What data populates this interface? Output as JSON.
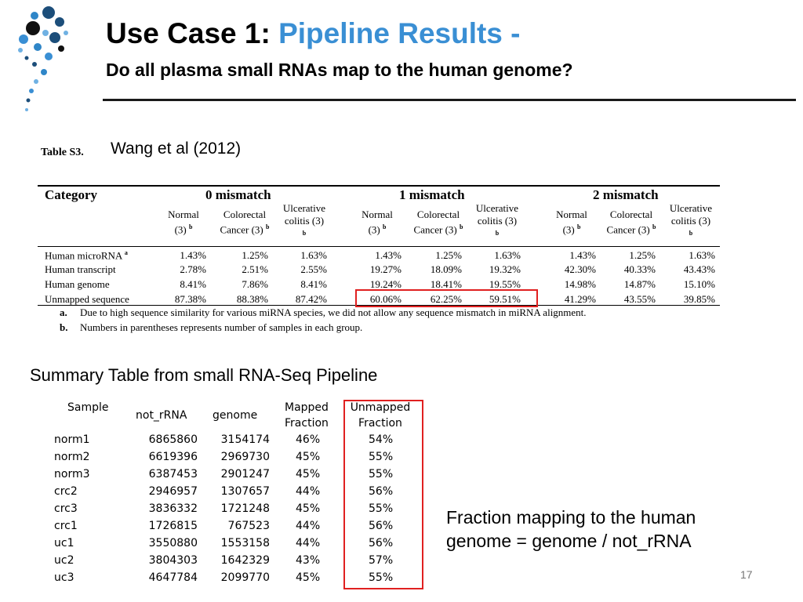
{
  "header": {
    "title_prefix": "Use Case 1: ",
    "title_accent": "Pipeline Results -",
    "subtitle": "Do all plasma small RNAs map to the human genome?"
  },
  "citation": "Wang et al (2012)",
  "table_s3": {
    "label": "Table S3.",
    "category_header": "Category",
    "groups": [
      "0 mismatch",
      "1 mismatch",
      "2 mismatch"
    ],
    "subheaders": [
      {
        "line1": "Normal",
        "line2": "(3)",
        "sup": "b"
      },
      {
        "line1": "Colorectal",
        "line2": "Cancer (3)",
        "sup": "b"
      },
      {
        "line1": "Ulcerative",
        "line2": "colitis (3)",
        "sup": "b"
      }
    ],
    "rows": [
      {
        "label": "Human microRNA",
        "sup": "a",
        "values": [
          "1.43%",
          "1.25%",
          "1.63%",
          "1.43%",
          "1.25%",
          "1.63%",
          "1.43%",
          "1.25%",
          "1.63%"
        ]
      },
      {
        "label": "Human transcript",
        "sup": "",
        "values": [
          "2.78%",
          "2.51%",
          "2.55%",
          "19.27%",
          "18.09%",
          "19.32%",
          "42.30%",
          "40.33%",
          "43.43%"
        ]
      },
      {
        "label": "Human genome",
        "sup": "",
        "values": [
          "8.41%",
          "7.86%",
          "8.41%",
          "19.24%",
          "18.41%",
          "19.55%",
          "14.98%",
          "14.87%",
          "15.10%"
        ]
      },
      {
        "label": "Unmapped sequence",
        "sup": "",
        "values": [
          "87.38%",
          "88.38%",
          "87.42%",
          "60.06%",
          "62.25%",
          "59.51%",
          "41.29%",
          "43.55%",
          "39.85%"
        ]
      }
    ],
    "notes": [
      {
        "mark": "a.",
        "text": "Due to high sequence similarity for various miRNA species, we did not allow any sequence mismatch in miRNA alignment."
      },
      {
        "mark": "b.",
        "text": "Numbers in parentheses represents number of samples in each group."
      }
    ]
  },
  "summary": {
    "title": "Summary Table from small RNA-Seq Pipeline",
    "headers": {
      "sample": "Sample",
      "not_rrna": "not_rRNA",
      "genome": "genome",
      "mapped1": "Mapped",
      "mapped2": "Fraction",
      "unmapped1": "Unmapped",
      "unmapped2": "Fraction"
    },
    "rows": [
      {
        "sample": "norm1",
        "not_rrna": "6865860",
        "genome": "3154174",
        "mapped": "46%",
        "unmapped": "54%"
      },
      {
        "sample": "norm2",
        "not_rrna": "6619396",
        "genome": "2969730",
        "mapped": "45%",
        "unmapped": "55%"
      },
      {
        "sample": "norm3",
        "not_rrna": "6387453",
        "genome": "2901247",
        "mapped": "45%",
        "unmapped": "55%"
      },
      {
        "sample": "crc2",
        "not_rrna": "2946957",
        "genome": "1307657",
        "mapped": "44%",
        "unmapped": "56%"
      },
      {
        "sample": "crc3",
        "not_rrna": "3836332",
        "genome": "1721248",
        "mapped": "45%",
        "unmapped": "55%"
      },
      {
        "sample": "crc1",
        "not_rrna": "1726815",
        "genome": "767523",
        "mapped": "44%",
        "unmapped": "56%"
      },
      {
        "sample": "uc1",
        "not_rrna": "3550880",
        "genome": "1553158",
        "mapped": "44%",
        "unmapped": "56%"
      },
      {
        "sample": "uc2",
        "not_rrna": "3804303",
        "genome": "1642329",
        "mapped": "43%",
        "unmapped": "57%"
      },
      {
        "sample": "uc3",
        "not_rrna": "4647784",
        "genome": "2099770",
        "mapped": "45%",
        "unmapped": "55%"
      }
    ]
  },
  "formula": {
    "line1": "Fraction mapping to the human",
    "line2": "genome = genome / not_rRNA"
  },
  "page_number": "17",
  "colors": {
    "accent": "#3a8fd4",
    "highlight": "#e02020",
    "logo": "#1c4e7a"
  }
}
